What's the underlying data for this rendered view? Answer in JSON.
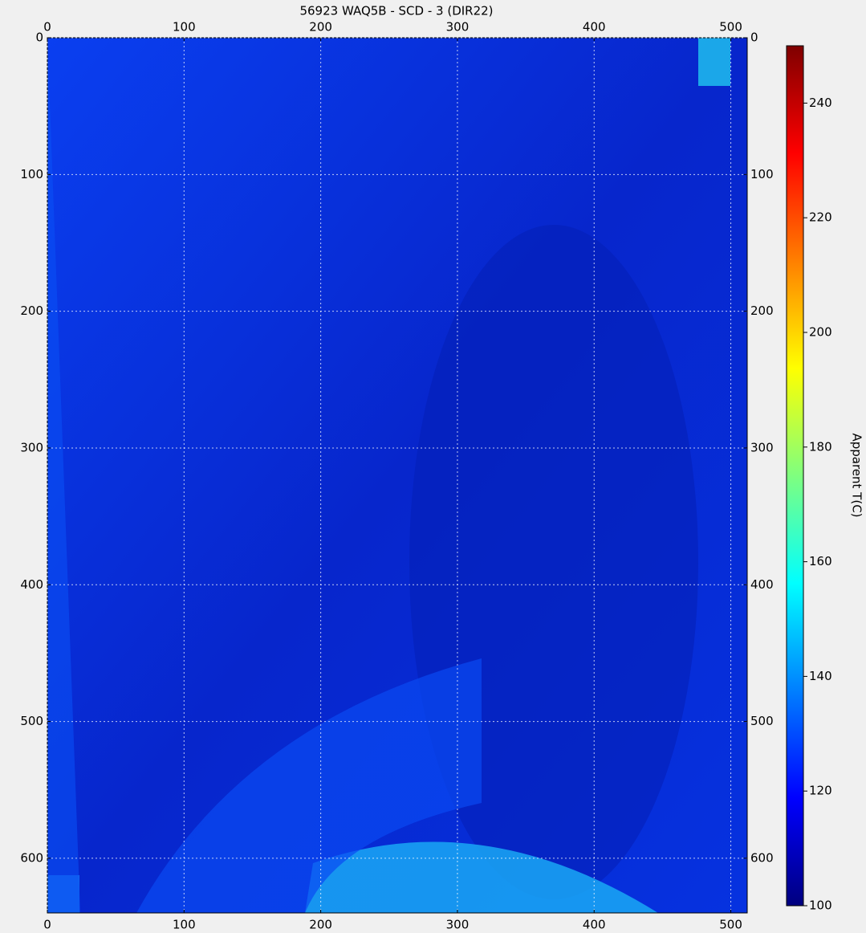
{
  "chart_data": {
    "type": "heatmap",
    "title": "56923 WAQ5B - SCD - 3 (DIR22)",
    "xlim": [
      0,
      512
    ],
    "ylim": [
      0,
      640
    ],
    "xticks": [
      0,
      100,
      200,
      300,
      400,
      500
    ],
    "yticks": [
      0,
      100,
      200,
      300,
      400,
      500,
      600
    ],
    "grid": true,
    "colormap": "jet",
    "colorbar": {
      "label": "Apparent T(C)",
      "clim": [
        100,
        250
      ],
      "ticks": [
        100,
        120,
        140,
        160,
        180,
        200,
        220,
        240
      ]
    }
  }
}
